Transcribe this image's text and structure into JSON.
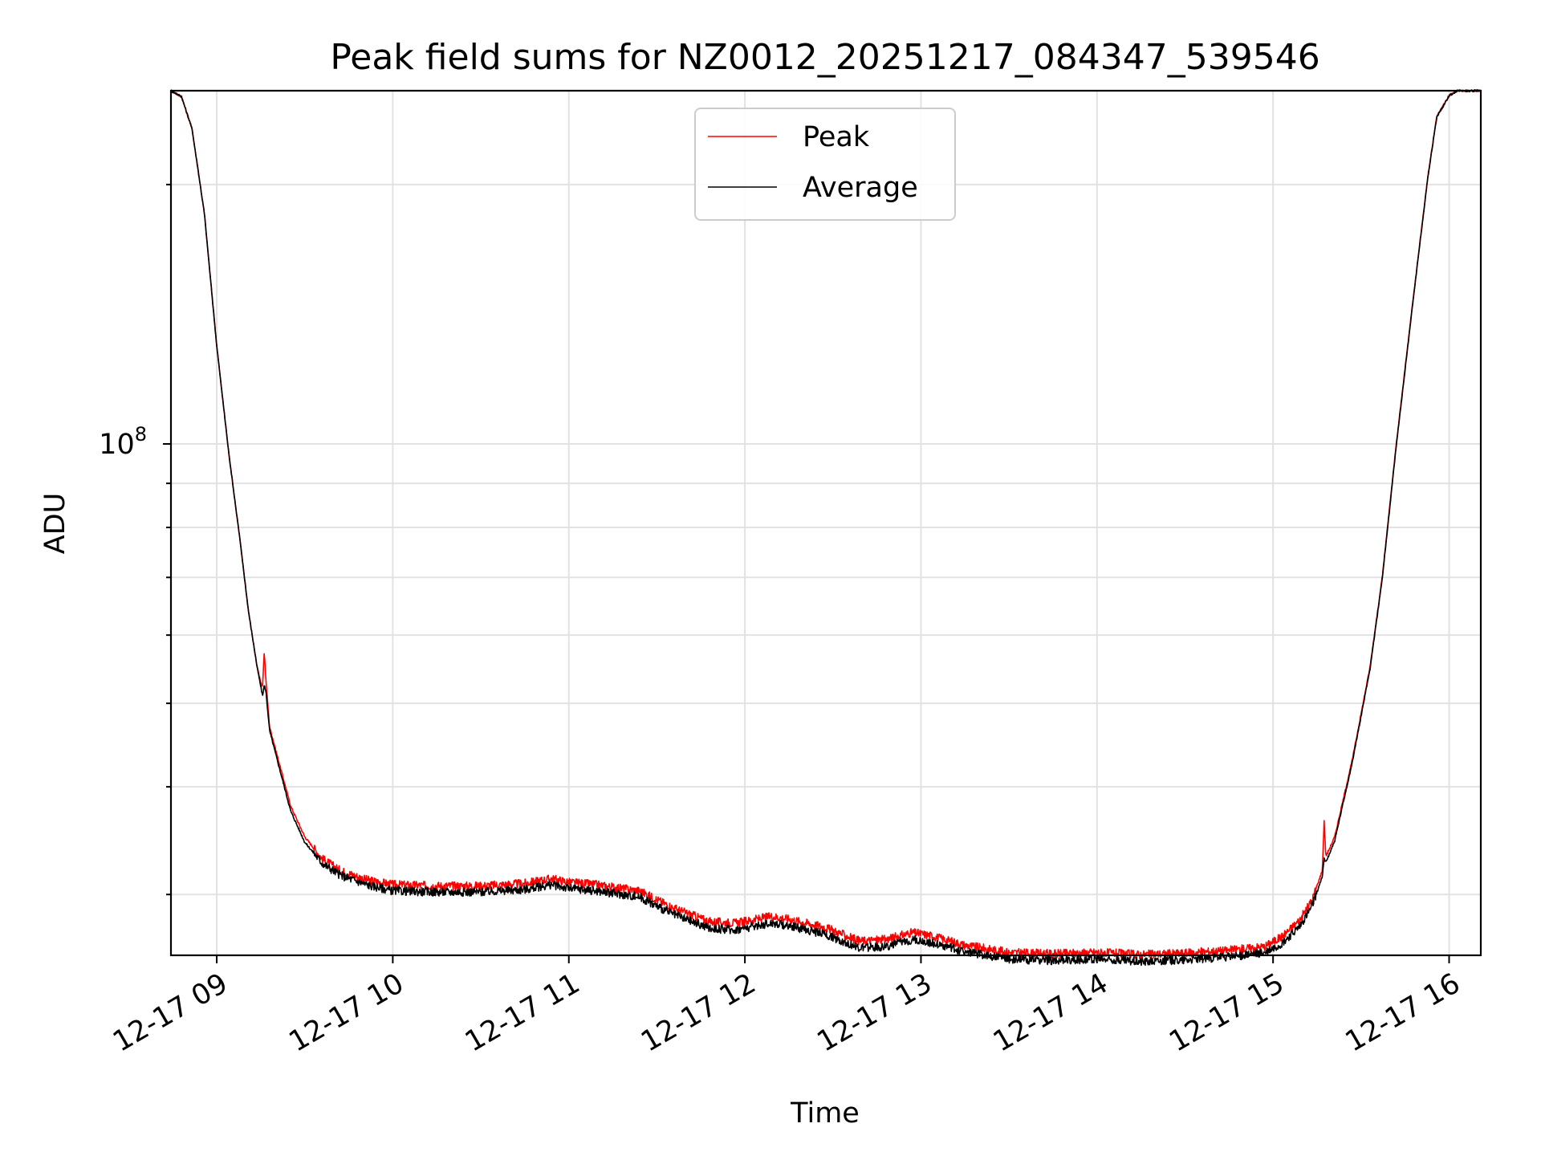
{
  "chart_data": {
    "type": "line",
    "title": "Peak field sums for NZ0012_20251217_084347_539546",
    "xlabel": "Time",
    "ylabel": "ADU",
    "x_unit": "hours since 12-17 00:00",
    "xlim": [
      8.74,
      16.18
    ],
    "ylim": [
      25500000,
      257000000
    ],
    "yscale": "log",
    "x_ticks": [
      {
        "value": 9,
        "label": "12-17 09"
      },
      {
        "value": 10,
        "label": "12-17 10"
      },
      {
        "value": 11,
        "label": "12-17 11"
      },
      {
        "value": 12,
        "label": "12-17 12"
      },
      {
        "value": 13,
        "label": "12-17 13"
      },
      {
        "value": 14,
        "label": "12-17 14"
      },
      {
        "value": 15,
        "label": "12-17 15"
      },
      {
        "value": 16,
        "label": "12-17 16"
      }
    ],
    "y_major_ticks": [
      {
        "value": 100000000,
        "base": "10",
        "exp": "8"
      }
    ],
    "y_minor_ticks": [
      30000000,
      40000000,
      50000000,
      60000000,
      70000000,
      80000000,
      90000000,
      200000000
    ],
    "grid": true,
    "legend": {
      "position": "upper-center",
      "entries": [
        "Peak",
        "Average"
      ]
    },
    "series": [
      {
        "name": "Peak",
        "color": "#ff0000",
        "points": [
          [
            8.74,
            257000000
          ],
          [
            8.8,
            253000000
          ],
          [
            8.86,
            232000000
          ],
          [
            8.93,
            185000000
          ],
          [
            9.0,
            130000000
          ],
          [
            9.07,
            97000000
          ],
          [
            9.13,
            78000000
          ],
          [
            9.18,
            64000000
          ],
          [
            9.23,
            55000000
          ],
          [
            9.26,
            52000000
          ],
          [
            9.27,
            57500000
          ],
          [
            9.28,
            53000000
          ],
          [
            9.3,
            47000000
          ],
          [
            9.35,
            43000000
          ],
          [
            9.42,
            38000000
          ],
          [
            9.5,
            35000000
          ],
          [
            9.6,
            33000000
          ],
          [
            9.7,
            32000000
          ],
          [
            9.85,
            31200000
          ],
          [
            10.0,
            30800000
          ],
          [
            10.25,
            30700000
          ],
          [
            10.5,
            30700000
          ],
          [
            10.75,
            30900000
          ],
          [
            10.9,
            31300000
          ],
          [
            11.0,
            31000000
          ],
          [
            11.15,
            30800000
          ],
          [
            11.4,
            30300000
          ],
          [
            11.6,
            28900000
          ],
          [
            11.8,
            27900000
          ],
          [
            11.95,
            27800000
          ],
          [
            12.15,
            28300000
          ],
          [
            12.25,
            28100000
          ],
          [
            12.45,
            27500000
          ],
          [
            12.65,
            26500000
          ],
          [
            12.8,
            26600000
          ],
          [
            12.95,
            27100000
          ],
          [
            13.05,
            26900000
          ],
          [
            13.25,
            26200000
          ],
          [
            13.5,
            25700000
          ],
          [
            13.75,
            25600000
          ],
          [
            14.0,
            25700000
          ],
          [
            14.25,
            25550000
          ],
          [
            14.5,
            25650000
          ],
          [
            14.75,
            25850000
          ],
          [
            14.95,
            26100000
          ],
          [
            15.05,
            26800000
          ],
          [
            15.15,
            28000000
          ],
          [
            15.22,
            29500000
          ],
          [
            15.28,
            32000000
          ],
          [
            15.29,
            36500000
          ],
          [
            15.3,
            33200000
          ],
          [
            15.35,
            35000000
          ],
          [
            15.45,
            43000000
          ],
          [
            15.55,
            55000000
          ],
          [
            15.62,
            70000000
          ],
          [
            15.7,
            100000000
          ],
          [
            15.8,
            150000000
          ],
          [
            15.88,
            205000000
          ],
          [
            15.93,
            240000000
          ],
          [
            16.0,
            254000000
          ],
          [
            16.05,
            257000000
          ],
          [
            16.18,
            257000000
          ]
        ]
      },
      {
        "name": "Average",
        "color": "#000000",
        "points": [
          [
            8.74,
            257000000
          ],
          [
            8.8,
            253000000
          ],
          [
            8.86,
            232000000
          ],
          [
            8.93,
            185000000
          ],
          [
            9.0,
            130000000
          ],
          [
            9.07,
            97000000
          ],
          [
            9.13,
            78000000
          ],
          [
            9.18,
            64000000
          ],
          [
            9.23,
            55000000
          ],
          [
            9.26,
            51000000
          ],
          [
            9.27,
            52500000
          ],
          [
            9.28,
            51500000
          ],
          [
            9.3,
            46500000
          ],
          [
            9.35,
            42500000
          ],
          [
            9.42,
            37500000
          ],
          [
            9.5,
            34500000
          ],
          [
            9.6,
            32600000
          ],
          [
            9.7,
            31600000
          ],
          [
            9.85,
            30800000
          ],
          [
            10.0,
            30300000
          ],
          [
            10.25,
            30200000
          ],
          [
            10.5,
            30200000
          ],
          [
            10.75,
            30400000
          ],
          [
            10.9,
            30800000
          ],
          [
            11.0,
            30500000
          ],
          [
            11.15,
            30300000
          ],
          [
            11.4,
            29800000
          ],
          [
            11.6,
            28400000
          ],
          [
            11.8,
            27400000
          ],
          [
            11.95,
            27300000
          ],
          [
            12.15,
            27800000
          ],
          [
            12.25,
            27600000
          ],
          [
            12.45,
            27000000
          ],
          [
            12.65,
            26000000
          ],
          [
            12.8,
            26100000
          ],
          [
            12.95,
            26600000
          ],
          [
            13.05,
            26400000
          ],
          [
            13.25,
            25750000
          ],
          [
            13.5,
            25250000
          ],
          [
            13.75,
            25150000
          ],
          [
            14.0,
            25250000
          ],
          [
            14.25,
            25100000
          ],
          [
            14.5,
            25200000
          ],
          [
            14.75,
            25400000
          ],
          [
            14.95,
            25650000
          ],
          [
            15.05,
            26300000
          ],
          [
            15.15,
            27500000
          ],
          [
            15.22,
            29000000
          ],
          [
            15.28,
            31500000
          ],
          [
            15.29,
            33000000
          ],
          [
            15.3,
            32700000
          ],
          [
            15.35,
            34600000
          ],
          [
            15.45,
            42700000
          ],
          [
            15.55,
            54700000
          ],
          [
            15.62,
            69700000
          ],
          [
            15.7,
            99500000
          ],
          [
            15.8,
            149500000
          ],
          [
            15.88,
            204500000
          ],
          [
            15.93,
            239500000
          ],
          [
            16.0,
            253500000
          ],
          [
            16.05,
            257000000
          ],
          [
            16.18,
            257000000
          ]
        ]
      }
    ]
  }
}
